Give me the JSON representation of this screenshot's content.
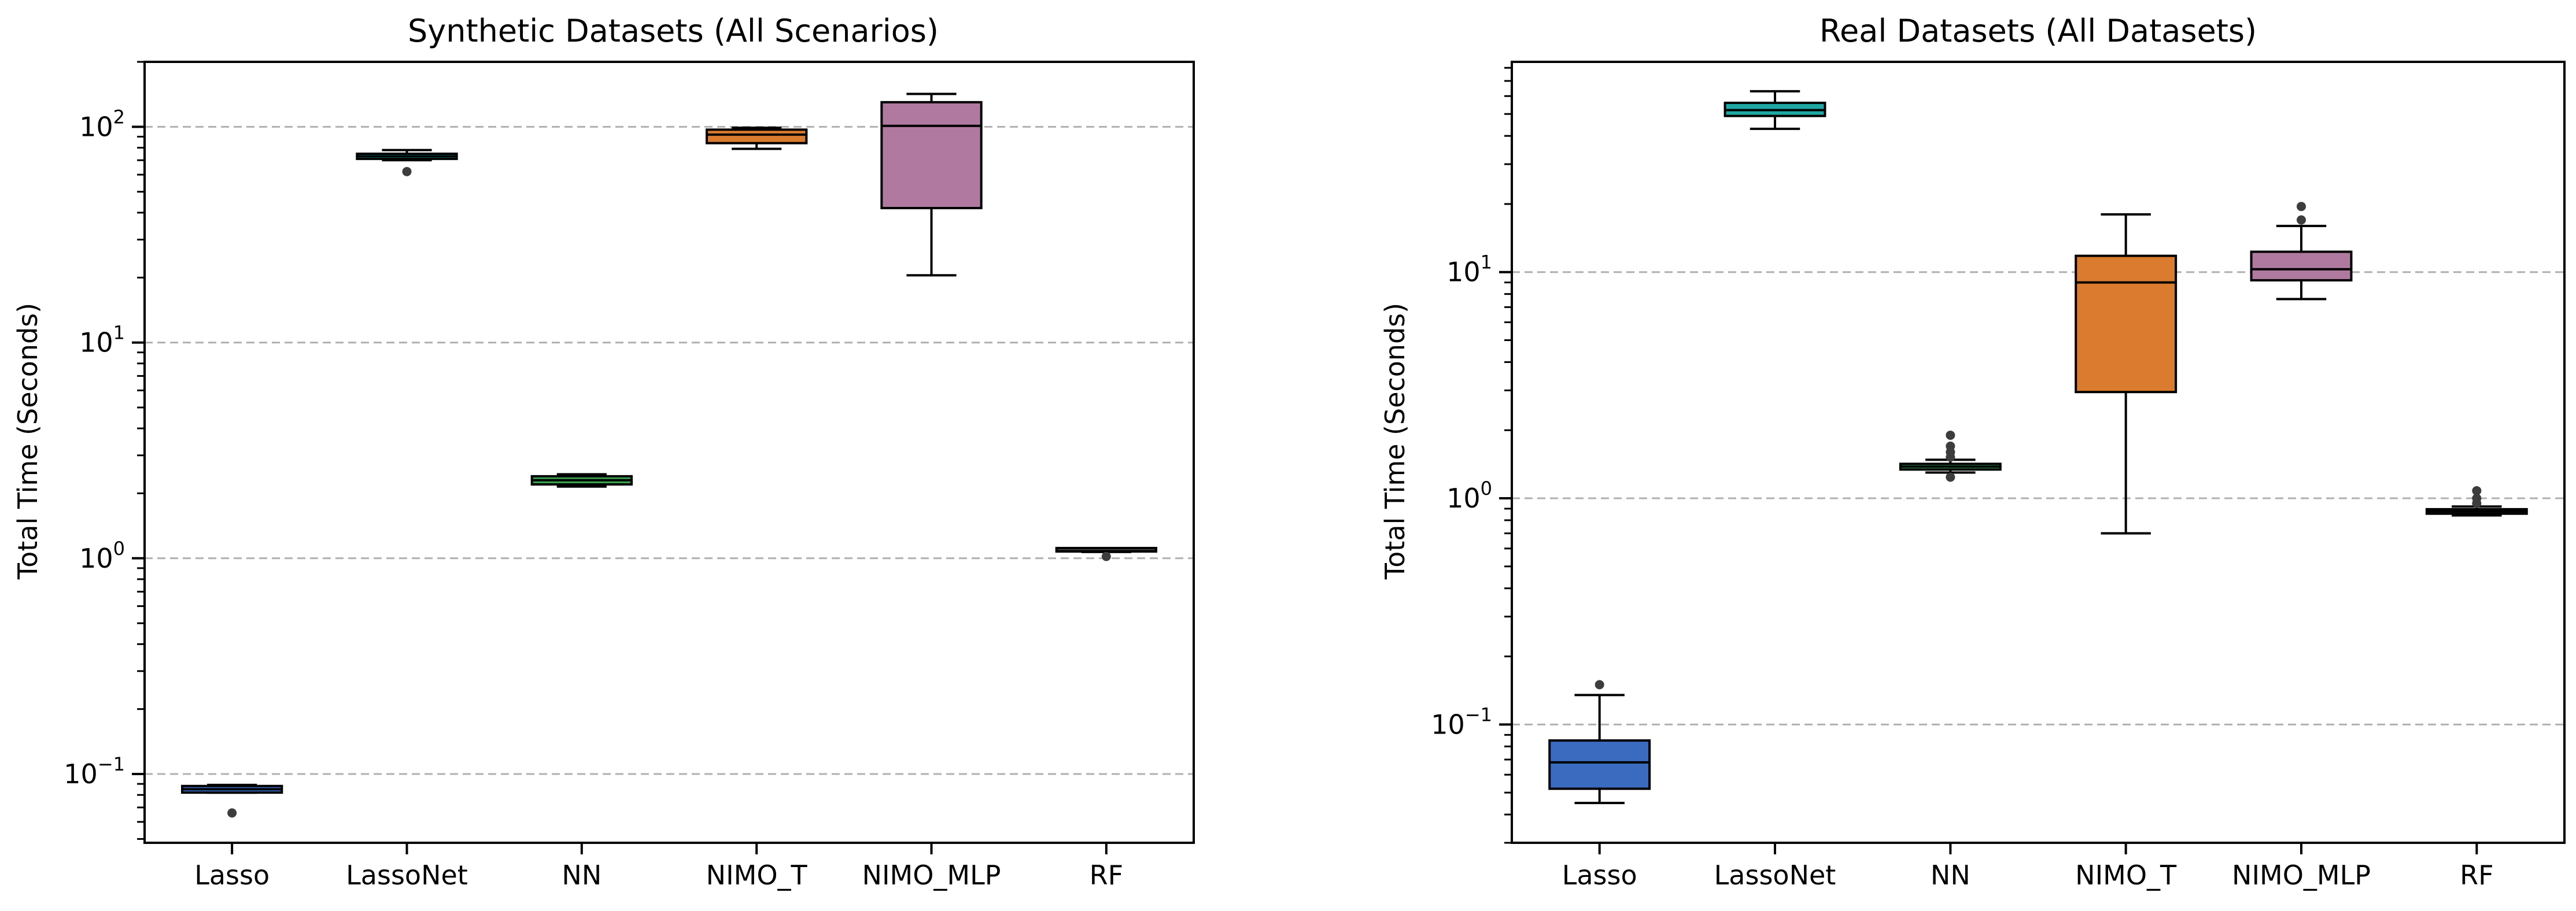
{
  "chart_data": [
    {
      "type": "box",
      "title": "Synthetic Datasets (All Scenarios)",
      "xlabel": "",
      "ylabel": "Total Time (Seconds)",
      "yscale": "log",
      "ylim": [
        0.048,
        200
      ],
      "ytick_values": [
        0.1,
        1,
        10,
        100
      ],
      "ytick_labels": [
        {
          "base": "10",
          "exp": "−1"
        },
        {
          "base": "10",
          "exp": "0"
        },
        {
          "base": "10",
          "exp": "1"
        },
        {
          "base": "10",
          "exp": "2"
        }
      ],
      "grid": "y-major dashed",
      "categories": [
        "Lasso",
        "LassoNet",
        "NN",
        "NIMO_T",
        "NIMO_MLP",
        "RF"
      ],
      "boxes": [
        {
          "category": "Lasso",
          "whislo": 0.082,
          "q1": 0.082,
          "med": 0.085,
          "q3": 0.088,
          "whishi": 0.089,
          "fliers": [
            0.066
          ],
          "color": "#3a6bbf"
        },
        {
          "category": "LassoNet",
          "whislo": 70,
          "q1": 71,
          "med": 73,
          "q3": 75,
          "whishi": 78,
          "fliers": [
            62
          ],
          "color": "#1fa8a3"
        },
        {
          "category": "NN",
          "whislo": 2.15,
          "q1": 2.2,
          "med": 2.3,
          "q3": 2.4,
          "whishi": 2.45,
          "fliers": [],
          "color": "#3aa04f"
        },
        {
          "category": "NIMO_T",
          "whislo": 79,
          "q1": 84,
          "med": 92,
          "q3": 97,
          "whishi": 99,
          "fliers": [],
          "color": "#da7b2f"
        },
        {
          "category": "NIMO_MLP",
          "whislo": 20.5,
          "q1": 42,
          "med": 101,
          "q3": 130,
          "whishi": 142,
          "fliers": [],
          "color": "#b07aa0"
        },
        {
          "category": "RF",
          "whislo": 1.07,
          "q1": 1.075,
          "med": 1.08,
          "q3": 1.09,
          "whishi": 1.1,
          "fliers": [
            1.02
          ],
          "color": "#5a5a5a"
        }
      ]
    },
    {
      "type": "box",
      "title": "Real Datasets (All Datasets)",
      "xlabel": "",
      "ylabel": "Total Time (Seconds)",
      "yscale": "log",
      "ylim": [
        0.03,
        85
      ],
      "ytick_values": [
        0.1,
        1,
        10
      ],
      "ytick_labels": [
        {
          "base": "10",
          "exp": "−1"
        },
        {
          "base": "10",
          "exp": "0"
        },
        {
          "base": "10",
          "exp": "1"
        }
      ],
      "grid": "y-major dashed",
      "categories": [
        "Lasso",
        "LassoNet",
        "NN",
        "NIMO_T",
        "NIMO_MLP",
        "RF"
      ],
      "boxes": [
        {
          "category": "Lasso",
          "whislo": 0.045,
          "q1": 0.052,
          "med": 0.068,
          "q3": 0.085,
          "whishi": 0.135,
          "fliers": [
            0.15
          ],
          "color": "#3a6bbf"
        },
        {
          "category": "LassoNet",
          "whislo": 43,
          "q1": 49,
          "med": 52,
          "q3": 56,
          "whishi": 63,
          "fliers": [],
          "color": "#1fa8a3"
        },
        {
          "category": "NN",
          "whislo": 1.3,
          "q1": 1.34,
          "med": 1.38,
          "q3": 1.42,
          "whishi": 1.48,
          "fliers": [
            1.24,
            1.52,
            1.6,
            1.7,
            1.9
          ],
          "color": "#3aa04f"
        },
        {
          "category": "NIMO_T",
          "whislo": 0.7,
          "q1": 2.95,
          "med": 9,
          "q3": 11.8,
          "whishi": 18,
          "fliers": [],
          "color": "#da7b2f"
        },
        {
          "category": "NIMO_MLP",
          "whislo": 7.6,
          "q1": 9.2,
          "med": 10.3,
          "q3": 12.3,
          "whishi": 16,
          "fliers": [
            17,
            19.5
          ],
          "color": "#b07aa0"
        },
        {
          "category": "RF",
          "whislo": 0.84,
          "q1": 0.855,
          "med": 0.875,
          "q3": 0.895,
          "whishi": 0.92,
          "fliers": [
            0.95,
            1.0,
            1.08
          ],
          "color": "#5a5a5a"
        }
      ]
    }
  ]
}
